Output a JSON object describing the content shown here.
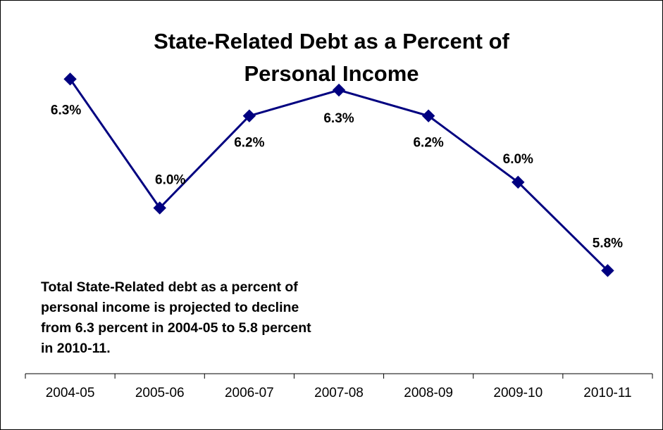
{
  "chart_data": {
    "type": "line",
    "title": "State-Related Debt as a Percent of\nPersonal Income",
    "categories": [
      "2004-05",
      "2005-06",
      "2006-07",
      "2007-08",
      "2008-09",
      "2009-10",
      "2010-11"
    ],
    "series": [
      {
        "values": [
          6.3,
          5.95,
          6.2,
          6.27,
          6.2,
          6.02,
          5.78
        ],
        "labels": [
          "6.3%",
          "6.0%",
          "6.2%",
          "6.3%",
          "6.2%",
          "6.0%",
          "5.8%"
        ],
        "color": "#000080"
      }
    ],
    "xlabel": "",
    "ylabel": "",
    "ylim": [
      5.5,
      6.4
    ],
    "grid": false,
    "legend": "none",
    "y_axis_visible": false,
    "annotation": "Total State-Related debt as a percent of\npersonal income is projected to decline\nfrom 6.3 percent in 2004-05 to 5.8 percent\nin 2010-11."
  }
}
